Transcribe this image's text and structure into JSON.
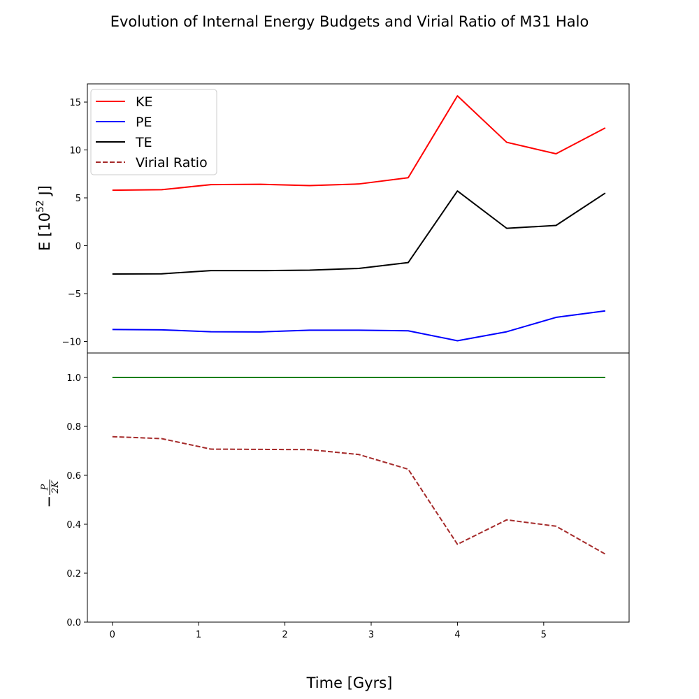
{
  "figure": {
    "title": "Evolution of Internal Energy Budgets and Virial Ratio of M31 Halo",
    "xlabel": "Time [Gyrs]"
  },
  "chart_data": [
    {
      "type": "line",
      "xlim": [
        -0.29,
        5.99
      ],
      "ylim": [
        -11.2,
        16.9
      ],
      "ylabel": {
        "prefix": "E [10",
        "exp": "52",
        "suffix": " J]"
      },
      "yticks": [
        -10,
        -5,
        0,
        5,
        10,
        15
      ],
      "grid": false,
      "legend_placement": "top-left",
      "x": [
        0,
        0.571,
        1.143,
        1.714,
        2.286,
        2.857,
        3.429,
        4.0,
        4.571,
        5.143,
        5.714
      ],
      "series": [
        {
          "name": "KE",
          "color": "#ff0000",
          "dash": "solid",
          "values": [
            5.8,
            5.85,
            6.38,
            6.42,
            6.28,
            6.45,
            7.1,
            15.65,
            10.8,
            9.6,
            12.3
          ]
        },
        {
          "name": "PE",
          "color": "#0000ff",
          "dash": "solid",
          "values": [
            -8.75,
            -8.78,
            -8.98,
            -9.0,
            -8.82,
            -8.82,
            -8.88,
            -9.92,
            -8.98,
            -7.48,
            -6.8
          ]
        },
        {
          "name": "TE",
          "color": "#000000",
          "dash": "solid",
          "values": [
            -2.95,
            -2.93,
            -2.6,
            -2.6,
            -2.55,
            -2.37,
            -1.76,
            5.72,
            1.82,
            2.12,
            5.5
          ]
        }
      ],
      "legend_entries": [
        {
          "name": "KE",
          "color": "#ff0000",
          "dash": "solid"
        },
        {
          "name": "PE",
          "color": "#0000ff",
          "dash": "solid"
        },
        {
          "name": "TE",
          "color": "#000000",
          "dash": "solid"
        },
        {
          "name": "Virial Ratio",
          "color": "#a52a2a",
          "dash": "dashed"
        }
      ]
    },
    {
      "type": "line",
      "xlim": [
        -0.29,
        5.99
      ],
      "ylim": [
        0.0,
        1.1
      ],
      "ylabel": {
        "minus": "−",
        "num": "P",
        "den": "2K"
      },
      "yticks": [
        0.0,
        0.2,
        0.4,
        0.6,
        0.8,
        1.0
      ],
      "xticks": [
        0,
        1,
        2,
        3,
        4,
        5
      ],
      "grid": false,
      "x": [
        0,
        0.571,
        1.143,
        1.714,
        2.286,
        2.857,
        3.429,
        4.0,
        4.571,
        5.143,
        5.714
      ],
      "series": [
        {
          "name": "",
          "color": "#008000",
          "dash": "solid",
          "values": [
            1.0,
            1.0,
            1.0,
            1.0,
            1.0,
            1.0,
            1.0,
            1.0,
            1.0,
            1.0,
            1.0
          ]
        },
        {
          "name": "Virial Ratio",
          "color": "#a52a2a",
          "dash": "dashed",
          "values": [
            0.758,
            0.75,
            0.707,
            0.706,
            0.705,
            0.685,
            0.625,
            0.318,
            0.418,
            0.392,
            0.278
          ]
        }
      ]
    }
  ]
}
